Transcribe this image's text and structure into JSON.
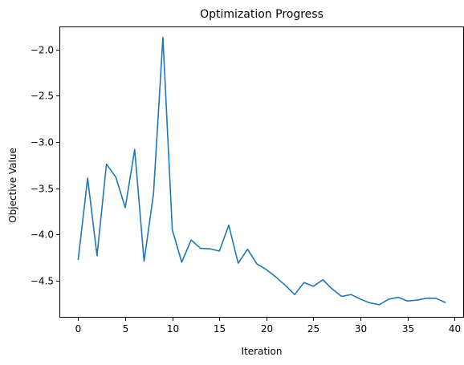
{
  "chart_data": {
    "type": "line",
    "title": "Optimization Progress",
    "xlabel": "Iteration",
    "ylabel": "Objective Value",
    "xlim": [
      -2,
      41
    ],
    "ylim": [
      -4.9,
      -1.75
    ],
    "xticks": [
      0,
      5,
      10,
      15,
      20,
      25,
      30,
      35,
      40
    ],
    "yticks": [
      -4.5,
      -4.0,
      -3.5,
      -3.0,
      -2.5,
      -2.0
    ],
    "ytick_labels": [
      "−4.5",
      "−4.0",
      "−3.5",
      "−3.0",
      "−2.5",
      "−2.0"
    ],
    "grid": false,
    "series": [
      {
        "color": "#1f77b4",
        "x": [
          0,
          1,
          2,
          3,
          4,
          5,
          6,
          7,
          8,
          9,
          10,
          11,
          12,
          13,
          14,
          15,
          16,
          17,
          18,
          19,
          20,
          21,
          22,
          23,
          24,
          25,
          26,
          27,
          28,
          29,
          30,
          31,
          32,
          33,
          34,
          35,
          36,
          37,
          38,
          39
        ],
        "y": [
          -4.27,
          -3.39,
          -4.23,
          -3.24,
          -3.38,
          -3.71,
          -3.08,
          -4.29,
          -3.56,
          -1.87,
          -3.95,
          -4.3,
          -4.06,
          -4.15,
          -4.155,
          -4.18,
          -3.9,
          -4.31,
          -4.16,
          -4.32,
          -4.38,
          -4.46,
          -4.55,
          -4.65,
          -4.52,
          -4.56,
          -4.49,
          -4.59,
          -4.67,
          -4.65,
          -4.7,
          -4.74,
          -4.76,
          -4.7,
          -4.68,
          -4.72,
          -4.71,
          -4.69,
          -4.69,
          -4.735
        ]
      }
    ]
  }
}
